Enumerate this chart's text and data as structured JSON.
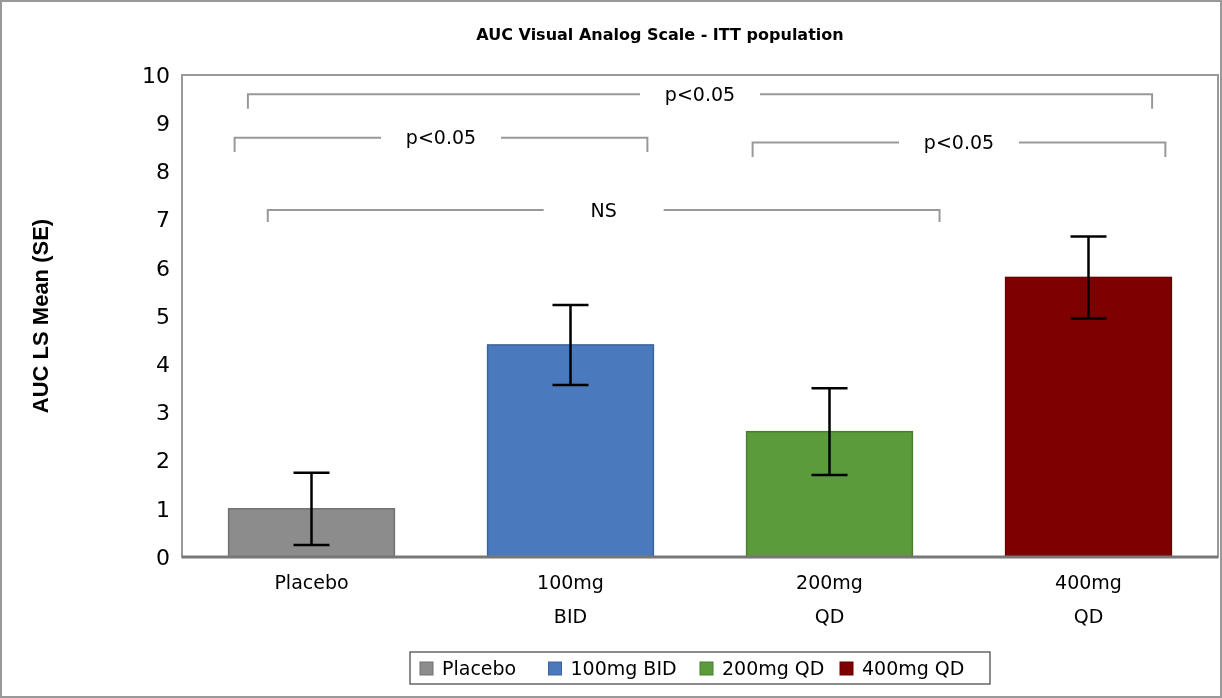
{
  "chart_data": {
    "type": "bar",
    "title": "AUC Visual Analog Scale - ITT population",
    "ylabel": "AUC LS Mean (SE)",
    "categories": [
      "Placebo",
      "100mg\nBID",
      "200mg\nQD",
      "400mg\nQD"
    ],
    "series": [
      {
        "name": "Placebo",
        "color": "#8c8c8c",
        "values": [
          1.0,
          null,
          null,
          null
        ],
        "errors": [
          0.75,
          null,
          null,
          null
        ]
      },
      {
        "name": "100mg BID",
        "color": "#4a7abd",
        "values": [
          null,
          4.4,
          null,
          null
        ],
        "errors": [
          null,
          0.83,
          null,
          null
        ]
      },
      {
        "name": "200mg QD",
        "color": "#5b9b3c",
        "values": [
          null,
          null,
          2.6,
          null
        ],
        "errors": [
          null,
          null,
          0.9,
          null
        ]
      },
      {
        "name": "400mg QD",
        "color": "#7f0000",
        "values": [
          null,
          null,
          null,
          5.8
        ],
        "errors": [
          null,
          null,
          null,
          0.85
        ]
      }
    ],
    "ylim": [
      0,
      10
    ],
    "yticks": [
      0,
      1,
      2,
      3,
      4,
      5,
      6,
      7,
      8,
      9,
      10
    ],
    "legend": "bottom",
    "grid": false,
    "annotations": [
      "p<0.05",
      "p<0.05",
      "NS",
      "p<0.05"
    ]
  }
}
